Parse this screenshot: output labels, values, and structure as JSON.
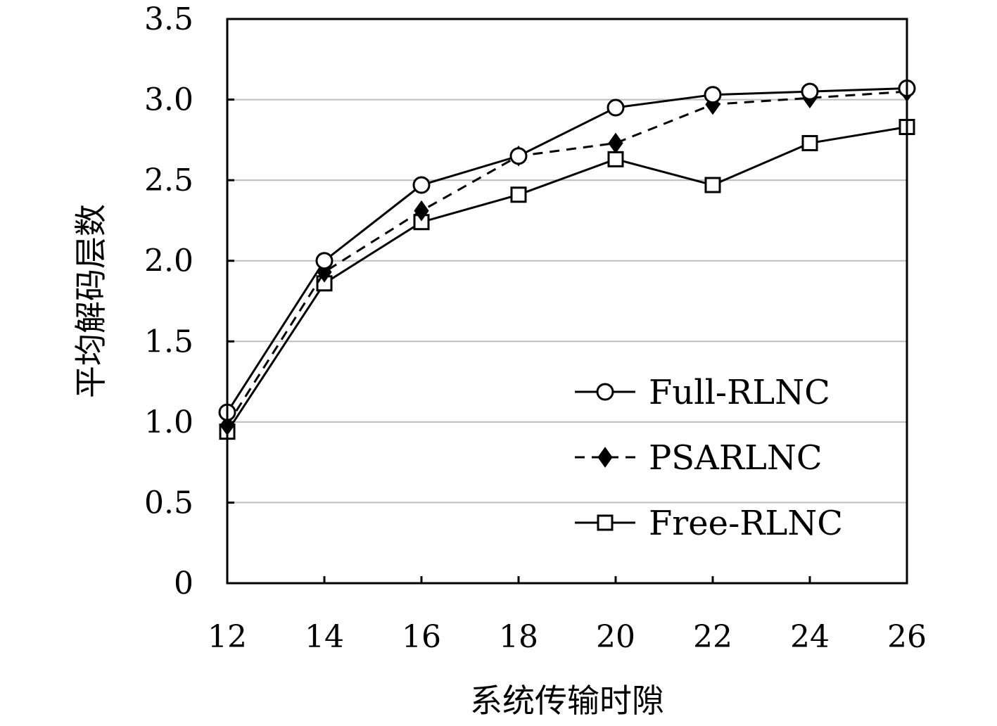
{
  "chart_data": {
    "type": "line",
    "xlabel": "系统传输时隙",
    "ylabel": "平均解码层数",
    "x": [
      12,
      14,
      16,
      18,
      20,
      22,
      24,
      26
    ],
    "xlim": [
      12,
      26
    ],
    "ylim": [
      0,
      3.5
    ],
    "x_ticks": [
      "12",
      "14",
      "16",
      "18",
      "20",
      "22",
      "24",
      "26"
    ],
    "y_ticks": [
      "0",
      "0.5",
      "1.0",
      "1.5",
      "2.0",
      "2.5",
      "3.0",
      "3.5"
    ],
    "grid": "horizontal",
    "legend_position": "bottom-right",
    "series": [
      {
        "name": "Full-RLNC",
        "marker": "open-circle",
        "line": "solid",
        "values": [
          1.06,
          2.0,
          2.47,
          2.65,
          2.95,
          3.03,
          3.05,
          3.07
        ]
      },
      {
        "name": "PSARLNC",
        "marker": "filled-diamond",
        "line": "dashed",
        "values": [
          0.98,
          1.93,
          2.31,
          2.65,
          2.73,
          2.97,
          3.01,
          3.05
        ]
      },
      {
        "name": "Free-RLNC",
        "marker": "open-square",
        "line": "solid",
        "values": [
          0.94,
          1.86,
          2.24,
          2.41,
          2.63,
          2.47,
          2.73,
          2.83
        ]
      }
    ]
  }
}
